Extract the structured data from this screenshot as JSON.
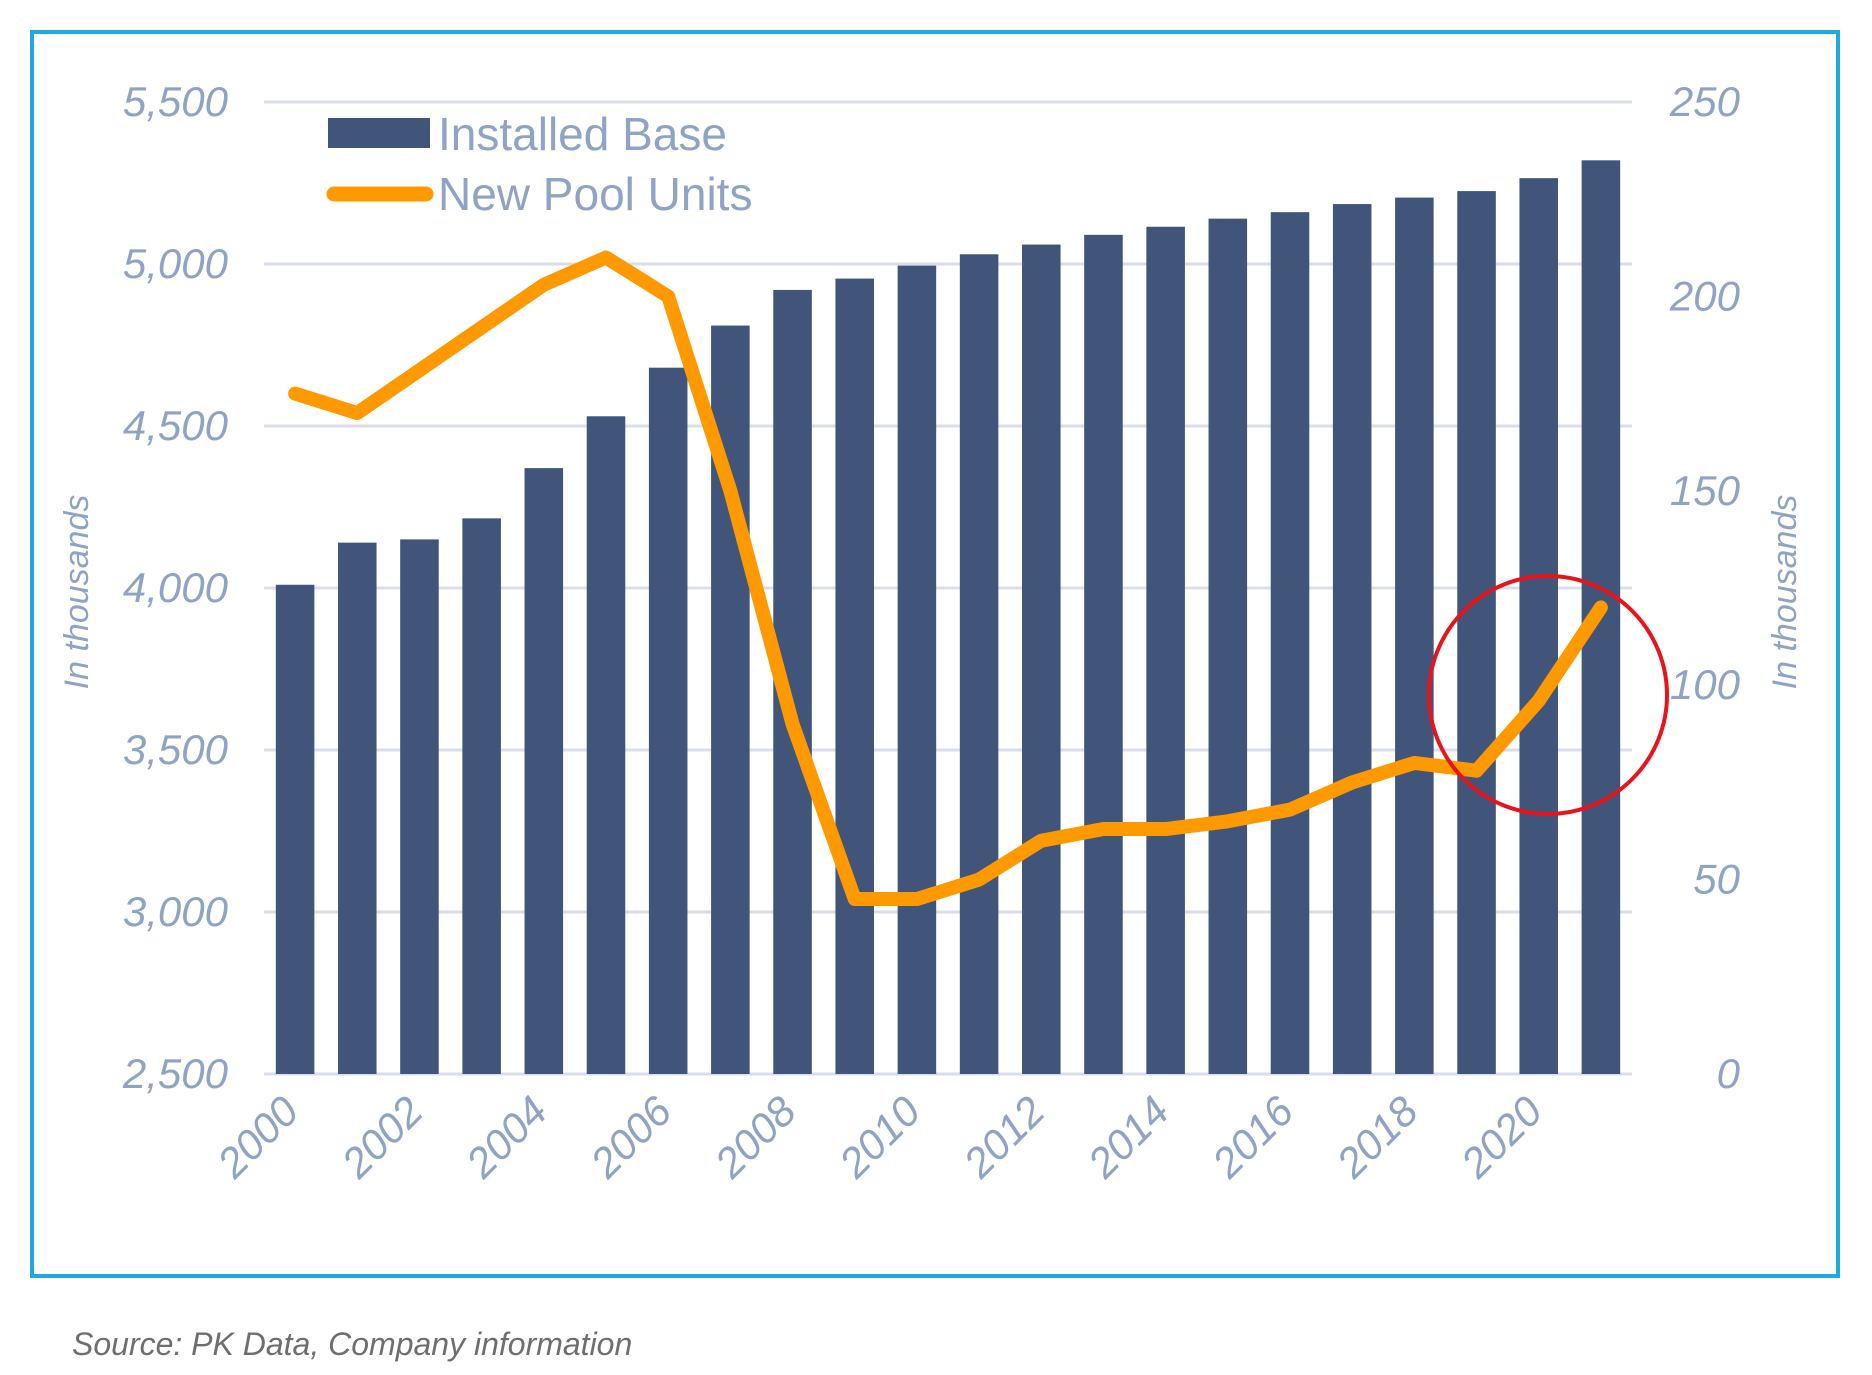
{
  "chart_data": {
    "type": "bar+line",
    "categories": [
      2000,
      2001,
      2002,
      2003,
      2004,
      2005,
      2006,
      2007,
      2008,
      2009,
      2010,
      2011,
      2012,
      2013,
      2014,
      2015,
      2016,
      2017,
      2018,
      2019,
      2020,
      2021
    ],
    "x_tick_labels": [
      "2000",
      "2002",
      "2004",
      "2006",
      "2008",
      "2010",
      "2012",
      "2014",
      "2016",
      "2018",
      "2020"
    ],
    "series": [
      {
        "name": "Installed Base",
        "type": "bar",
        "axis": "left",
        "color": "#41557b",
        "values": [
          4010,
          4140,
          4150,
          4215,
          4370,
          4530,
          4680,
          4810,
          4920,
          4955,
          4995,
          5030,
          5060,
          5090,
          5115,
          5140,
          5160,
          5185,
          5205,
          5225,
          5265,
          5320
        ]
      },
      {
        "name": "New Pool Units",
        "type": "line",
        "axis": "right",
        "color": "#ff9900",
        "values": [
          175,
          170,
          181,
          192,
          203,
          210,
          200,
          150,
          90,
          45,
          45,
          50,
          60,
          63,
          63,
          65,
          68,
          75,
          80,
          78,
          96,
          120
        ]
      }
    ],
    "y_left": {
      "label": "In thousands",
      "min": 2500,
      "max": 5500,
      "ticks": [
        "2,500",
        "3,000",
        "3,500",
        "4,000",
        "4,500",
        "5,000",
        "5,500"
      ]
    },
    "y_right": {
      "label": "In thousands",
      "min": 0,
      "max": 250,
      "ticks": [
        "0",
        "50",
        "100",
        "150",
        "200",
        "250"
      ]
    },
    "grid": true,
    "legend_position": "top-left",
    "annotation": {
      "shape": "circle",
      "color": "#e8141b",
      "target_years": [
        2019,
        2021
      ]
    }
  },
  "source_note": "Source: PK Data, Company information",
  "colors": {
    "frame_border": "#1eaadc",
    "gridline": "#d9deea",
    "axis_text": "#8fa3c4"
  }
}
